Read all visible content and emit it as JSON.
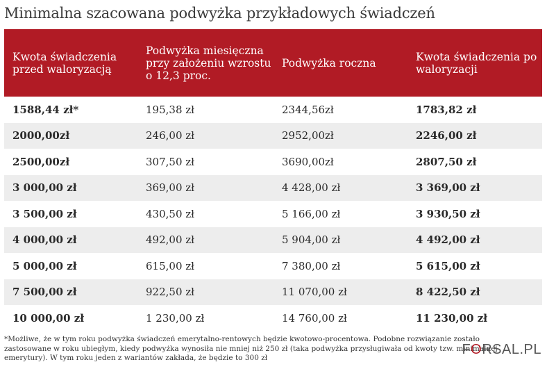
{
  "title": "Minimalna szacowana podwyżka przykładowych świadczeń",
  "chart_data": {
    "type": "table",
    "columns": [
      "Kwota świadczenia przed waloryzacją",
      "Podwyżka miesięczna przy założeniu wzrostu o 12,3 proc.",
      "Podwyżka roczna",
      "Kwota świadczenia po waloryzacji"
    ],
    "rows": [
      [
        "1588,44 zł*",
        "195,38 zł",
        "2344,56zł",
        "1783,82 zł"
      ],
      [
        "2000,00zł",
        "246,00 zł",
        "2952,00zł",
        "2246,00 zł"
      ],
      [
        "2500,00zł",
        "307,50 zł",
        "3690,00zł",
        "2807,50 zł"
      ],
      [
        "3 000,00 zł",
        "369,00 zł",
        "4 428,00 zł",
        "3 369,00 zł"
      ],
      [
        "3 500,00 zł",
        "430,50 zł",
        "5 166,00 zł",
        "3 930,50 zł"
      ],
      [
        "4 000,00 zł",
        "492,00 zł",
        "5 904,00 zł",
        "4 492,00 zł"
      ],
      [
        "5 000,00 zł",
        "615,00 zł",
        "7 380,00 zł",
        "5 615,00 zł"
      ],
      [
        "7 500,00 zł",
        "922,50 zł",
        "11 070,00 zł",
        "8 422,50 zł"
      ],
      [
        "10 000,00 zł",
        "1 230,00 zł",
        "14 760,00 zł",
        "11 230,00 zł"
      ]
    ],
    "header_color": "#b11b25",
    "stripe_color": "#ededed"
  },
  "footnote": "*Możliwe, że w tym roku podwyżka świadczeń emerytalno-rentowych będzie kwotowo-procentowa. Podobne rozwiązanie zostało zastosowane w roku ubiegłym, kiedy podwyżka wynosiła nie mniej niż 250 zł (taka podwyżka przysługiwała od kwoty tzw. minimalnej emerytury). W tym roku jeden z wariantów zakłada, że będzie to 300 zł",
  "logo": "FORSAL.PL"
}
